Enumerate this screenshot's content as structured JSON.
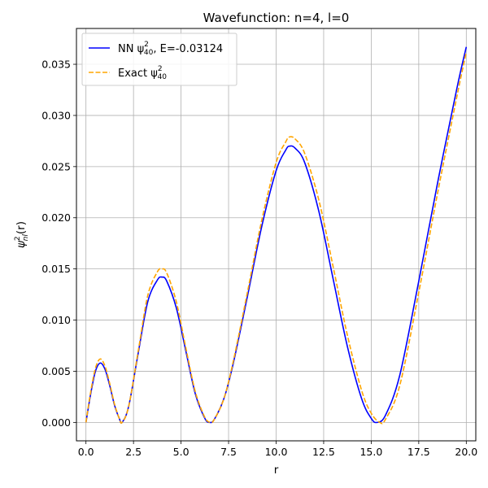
{
  "chart_data": {
    "type": "line",
    "title": "Wavefunction: n=4, l=0",
    "xlabel": "r",
    "ylabel": "ψ²nl(r)",
    "xlim": [
      -0.5,
      20.5
    ],
    "ylim": [
      -0.0018,
      0.0385
    ],
    "grid": true,
    "legend_position": "upper-left",
    "xticks": [
      0.0,
      2.5,
      5.0,
      7.5,
      10.0,
      12.5,
      15.0,
      17.5,
      20.0
    ],
    "xtick_labels": [
      "0.0",
      "2.5",
      "5.0",
      "7.5",
      "10.0",
      "12.5",
      "15.0",
      "17.5",
      "20.0"
    ],
    "yticks": [
      0.0,
      0.005,
      0.01,
      0.015,
      0.02,
      0.025,
      0.03,
      0.035
    ],
    "ytick_labels": [
      "0.000",
      "0.005",
      "0.010",
      "0.015",
      "0.020",
      "0.025",
      "0.030",
      "0.035"
    ],
    "series": [
      {
        "name": "NN ψ²40, E=-0.03124",
        "legend_base": "NN ψ",
        "legend_sup": "2",
        "legend_sub": "40",
        "legend_suffix": ", E=-0.03124",
        "color": "#0000ff",
        "style": "solid",
        "x": [
          0,
          0.25,
          0.5,
          0.75,
          1.0,
          1.25,
          1.5,
          1.75,
          1.9,
          2.25,
          2.75,
          3.25,
          3.75,
          4.0,
          4.25,
          4.75,
          5.25,
          5.75,
          6.25,
          6.5,
          6.75,
          7.25,
          7.75,
          8.5,
          9.25,
          10.0,
          10.5,
          10.7,
          11.0,
          11.5,
          12.25,
          13.0,
          13.75,
          14.5,
          15.0,
          15.3,
          15.75,
          16.5,
          17.5,
          18.5,
          19.5,
          20.0
        ],
        "y": [
          0,
          0.0028,
          0.005,
          0.0058,
          0.0052,
          0.0036,
          0.0017,
          0.0004,
          0.0,
          0.0016,
          0.0068,
          0.0118,
          0.0139,
          0.0142,
          0.0138,
          0.0112,
          0.007,
          0.0028,
          0.0004,
          0.0,
          0.0003,
          0.0023,
          0.0058,
          0.0124,
          0.0192,
          0.0246,
          0.0266,
          0.027,
          0.0268,
          0.0254,
          0.0206,
          0.014,
          0.0074,
          0.0023,
          0.0004,
          0.0,
          0.0007,
          0.0046,
          0.0138,
          0.0235,
          0.0326,
          0.0367
        ]
      },
      {
        "name": "Exact ψ²40",
        "legend_base": "Exact ψ",
        "legend_sup": "2",
        "legend_sub": "40",
        "legend_suffix": "",
        "color": "#ffa500",
        "style": "dashed",
        "x": [
          0,
          0.25,
          0.5,
          0.75,
          1.0,
          1.25,
          1.5,
          1.75,
          1.9,
          2.25,
          2.75,
          3.25,
          3.75,
          4.0,
          4.25,
          4.75,
          5.25,
          5.75,
          6.25,
          6.55,
          6.75,
          7.25,
          7.75,
          8.5,
          9.25,
          10.0,
          10.5,
          10.7,
          11.0,
          11.5,
          12.25,
          13.0,
          13.75,
          14.5,
          15.0,
          15.45,
          15.75,
          16.5,
          17.5,
          18.5,
          19.5,
          20.0
        ],
        "y": [
          0,
          0.003,
          0.0053,
          0.0062,
          0.0055,
          0.0038,
          0.0018,
          0.0004,
          0.0,
          0.0016,
          0.007,
          0.0124,
          0.0147,
          0.015,
          0.0146,
          0.0118,
          0.0073,
          0.003,
          0.0005,
          0.0,
          0.0003,
          0.0023,
          0.006,
          0.0128,
          0.0198,
          0.0254,
          0.0274,
          0.0279,
          0.0277,
          0.0263,
          0.0217,
          0.0152,
          0.0085,
          0.0031,
          0.0009,
          0.0,
          0.0003,
          0.0036,
          0.0127,
          0.0225,
          0.0318,
          0.0362
        ]
      }
    ]
  }
}
